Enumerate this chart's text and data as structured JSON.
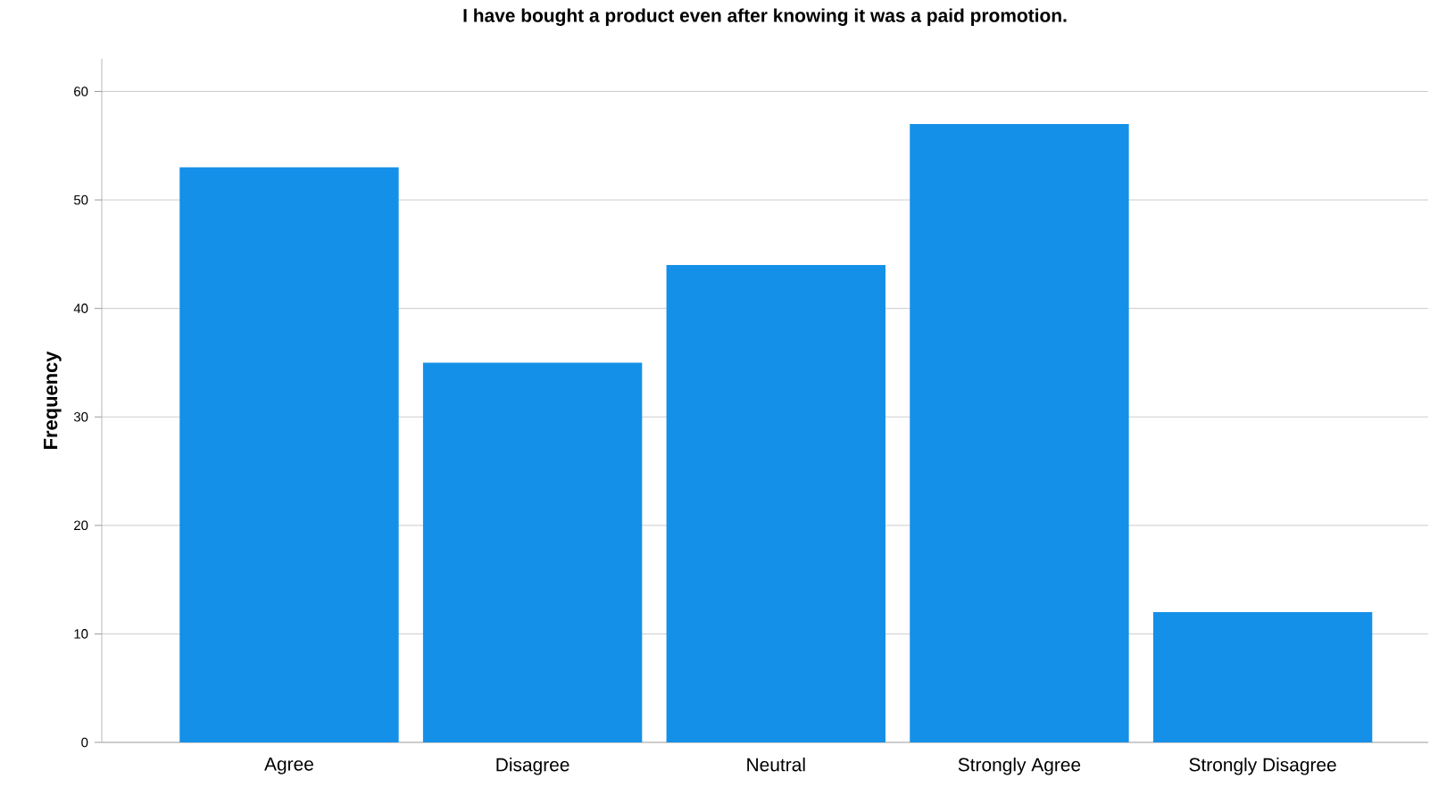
{
  "chart_data": {
    "type": "bar",
    "title": "I have bought a product even after knowing it was a paid promotion.",
    "ylabel": "Frequency",
    "categories": [
      "Agree",
      "Disagree",
      "Neutral",
      "Strongly Agree",
      "Strongly Disagree"
    ],
    "values": [
      53,
      35,
      44,
      57,
      12
    ],
    "color": "#1490e8",
    "ylim": [
      0,
      63
    ],
    "yticks": [
      0,
      10,
      20,
      30,
      40,
      50,
      60
    ],
    "grid": "y"
  }
}
